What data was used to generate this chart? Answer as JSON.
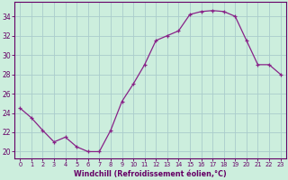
{
  "x": [
    0,
    1,
    2,
    3,
    4,
    5,
    6,
    7,
    8,
    9,
    10,
    11,
    12,
    13,
    14,
    15,
    16,
    17,
    18,
    19,
    20,
    21,
    22,
    23
  ],
  "y": [
    24.5,
    23.5,
    22.2,
    21.0,
    21.5,
    20.5,
    20.0,
    20.0,
    22.2,
    25.2,
    27.0,
    29.0,
    31.5,
    32.0,
    32.5,
    34.2,
    34.5,
    34.6,
    34.5,
    34.0,
    31.5,
    29.0,
    29.0,
    28.0
  ],
  "line_color": "#882288",
  "marker": "+",
  "bg_color": "#cceedd",
  "grid_color": "#aacccc",
  "xlabel": "Windchill (Refroidissement éolien,°C)",
  "ylabel_ticks": [
    20,
    22,
    24,
    26,
    28,
    30,
    32,
    34
  ],
  "ylim": [
    19.3,
    35.5
  ],
  "xlim": [
    -0.5,
    23.5
  ],
  "xtick_labels": [
    "0",
    "1",
    "2",
    "3",
    "4",
    "5",
    "6",
    "7",
    "8",
    "9",
    "10",
    "11",
    "12",
    "13",
    "14",
    "15",
    "16",
    "17",
    "18",
    "19",
    "20",
    "21",
    "22",
    "23"
  ],
  "label_color": "#660066",
  "axis_color": "#660066",
  "tick_color": "#660066"
}
